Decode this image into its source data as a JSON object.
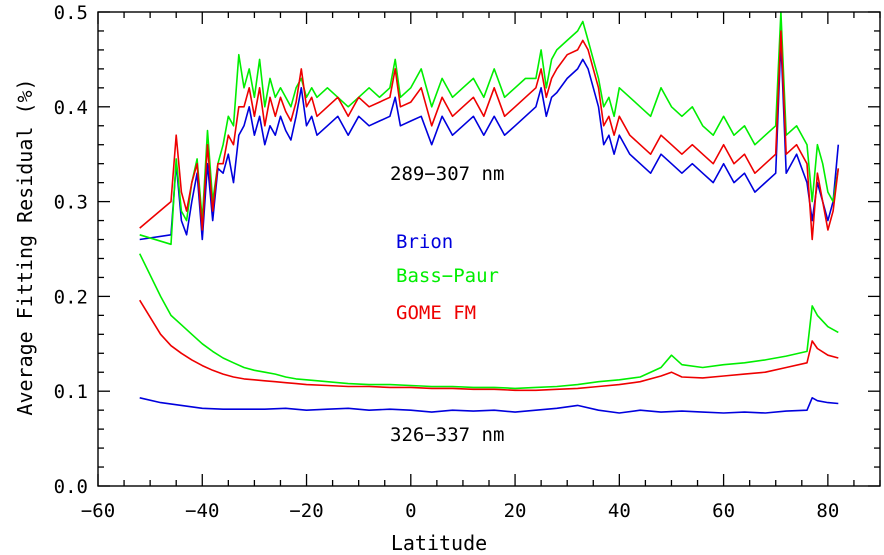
{
  "chart_data": {
    "type": "line",
    "xlabel": "Latitude",
    "ylabel": "Average Fitting Residual (%)",
    "xlim": [
      -60,
      90
    ],
    "ylim": [
      0.0,
      0.5
    ],
    "x_ticks": [
      -60,
      -40,
      -20,
      0,
      20,
      40,
      60,
      80
    ],
    "x_tick_labels": [
      "−60",
      "−40",
      "−20",
      "0",
      "20",
      "40",
      "60",
      "80"
    ],
    "y_ticks": [
      0.0,
      0.1,
      0.2,
      0.3,
      0.4,
      0.5
    ],
    "y_tick_labels": [
      "0.0",
      "0.1",
      "0.2",
      "0.3",
      "0.4",
      "0.5"
    ],
    "grid": false,
    "legend_placement": "center-left",
    "annotations": [
      {
        "text": "289−307 nm",
        "x": -4,
        "y": 0.325
      },
      {
        "text": "326−337 nm",
        "x": -4,
        "y": 0.055
      }
    ],
    "legend": [
      {
        "name": "Brion",
        "color": "#0000dd"
      },
      {
        "name": "Bass−Paur",
        "color": "#00ee00"
      },
      {
        "name": "GOME FM",
        "color": "#ee0000"
      }
    ],
    "series": [
      {
        "name": "Brion",
        "band": "289−307 nm",
        "color": "#0000dd",
        "x": [
          -52,
          -46,
          -45,
          -44,
          -43,
          -42,
          -41,
          -40,
          -39,
          -38,
          -37,
          -36,
          -35,
          -34,
          -33,
          -32,
          -31,
          -30,
          -29,
          -28,
          -27,
          -26,
          -25,
          -24,
          -23,
          -22,
          -21,
          -20,
          -19,
          -18,
          -16,
          -14,
          -12,
          -10,
          -8,
          -6,
          -4,
          -3,
          -2,
          0,
          2,
          4,
          6,
          8,
          10,
          12,
          14,
          16,
          18,
          20,
          22,
          24,
          25,
          26,
          27,
          28,
          30,
          32,
          33,
          34,
          35,
          36,
          37,
          38,
          39,
          40,
          42,
          44,
          46,
          48,
          50,
          52,
          54,
          56,
          58,
          60,
          62,
          64,
          66,
          68,
          70,
          71,
          72,
          74,
          76,
          77,
          78,
          79,
          80,
          81,
          82
        ],
        "y": [
          0.26,
          0.265,
          0.34,
          0.28,
          0.265,
          0.3,
          0.33,
          0.26,
          0.34,
          0.28,
          0.335,
          0.33,
          0.35,
          0.32,
          0.37,
          0.38,
          0.4,
          0.37,
          0.39,
          0.36,
          0.38,
          0.37,
          0.39,
          0.375,
          0.365,
          0.39,
          0.42,
          0.38,
          0.39,
          0.37,
          0.38,
          0.39,
          0.37,
          0.39,
          0.38,
          0.385,
          0.39,
          0.41,
          0.38,
          0.385,
          0.39,
          0.36,
          0.39,
          0.37,
          0.38,
          0.39,
          0.37,
          0.39,
          0.37,
          0.38,
          0.39,
          0.4,
          0.42,
          0.39,
          0.41,
          0.415,
          0.43,
          0.44,
          0.45,
          0.44,
          0.42,
          0.4,
          0.36,
          0.37,
          0.35,
          0.37,
          0.35,
          0.34,
          0.33,
          0.35,
          0.34,
          0.33,
          0.34,
          0.33,
          0.32,
          0.34,
          0.32,
          0.33,
          0.31,
          0.32,
          0.33,
          0.47,
          0.33,
          0.35,
          0.32,
          0.28,
          0.32,
          0.3,
          0.28,
          0.3,
          0.36
        ]
      },
      {
        "name": "Bass−Paur",
        "band": "289−307 nm",
        "color": "#00ee00",
        "x": [
          -52,
          -46,
          -45,
          -44,
          -43,
          -42,
          -41,
          -40,
          -39,
          -38,
          -37,
          -36,
          -35,
          -34,
          -33,
          -32,
          -31,
          -30,
          -29,
          -28,
          -27,
          -26,
          -25,
          -24,
          -23,
          -22,
          -21,
          -20,
          -19,
          -18,
          -16,
          -14,
          -12,
          -10,
          -8,
          -6,
          -4,
          -3,
          -2,
          0,
          2,
          4,
          6,
          8,
          10,
          12,
          14,
          16,
          18,
          20,
          22,
          24,
          25,
          26,
          27,
          28,
          30,
          32,
          33,
          34,
          35,
          36,
          37,
          38,
          39,
          40,
          42,
          44,
          46,
          48,
          50,
          52,
          54,
          56,
          58,
          60,
          62,
          64,
          66,
          68,
          70,
          71,
          72,
          74,
          76,
          77,
          78,
          79,
          80,
          81,
          82
        ],
        "y": [
          0.265,
          0.255,
          0.345,
          0.29,
          0.28,
          0.32,
          0.345,
          0.28,
          0.375,
          0.3,
          0.34,
          0.36,
          0.39,
          0.38,
          0.455,
          0.42,
          0.44,
          0.41,
          0.45,
          0.4,
          0.43,
          0.41,
          0.42,
          0.41,
          0.4,
          0.42,
          0.43,
          0.41,
          0.42,
          0.41,
          0.42,
          0.41,
          0.4,
          0.41,
          0.42,
          0.41,
          0.42,
          0.45,
          0.41,
          0.42,
          0.44,
          0.4,
          0.43,
          0.41,
          0.42,
          0.43,
          0.41,
          0.44,
          0.41,
          0.42,
          0.43,
          0.43,
          0.46,
          0.42,
          0.45,
          0.46,
          0.47,
          0.48,
          0.49,
          0.47,
          0.45,
          0.43,
          0.4,
          0.41,
          0.39,
          0.42,
          0.41,
          0.4,
          0.39,
          0.42,
          0.4,
          0.39,
          0.4,
          0.38,
          0.37,
          0.39,
          0.37,
          0.38,
          0.36,
          0.37,
          0.38,
          0.5,
          0.37,
          0.38,
          0.36,
          0.3,
          0.36,
          0.34,
          0.31,
          0.3,
          0.335
        ]
      },
      {
        "name": "GOME FM",
        "band": "289−307 nm",
        "color": "#ee0000",
        "x": [
          -52,
          -46,
          -45,
          -44,
          -43,
          -42,
          -41,
          -40,
          -39,
          -38,
          -37,
          -36,
          -35,
          -34,
          -33,
          -32,
          -31,
          -30,
          -29,
          -28,
          -27,
          -26,
          -25,
          -24,
          -23,
          -22,
          -21,
          -20,
          -19,
          -18,
          -16,
          -14,
          -12,
          -10,
          -8,
          -6,
          -4,
          -3,
          -2,
          0,
          2,
          4,
          6,
          8,
          10,
          12,
          14,
          16,
          18,
          20,
          22,
          24,
          25,
          26,
          27,
          28,
          30,
          32,
          33,
          34,
          35,
          36,
          37,
          38,
          39,
          40,
          42,
          44,
          46,
          48,
          50,
          52,
          54,
          56,
          58,
          60,
          62,
          64,
          66,
          68,
          70,
          71,
          72,
          74,
          76,
          77,
          78,
          79,
          80,
          81,
          82
        ],
        "y": [
          0.272,
          0.3,
          0.37,
          0.31,
          0.29,
          0.32,
          0.34,
          0.27,
          0.36,
          0.29,
          0.34,
          0.34,
          0.37,
          0.36,
          0.4,
          0.4,
          0.42,
          0.39,
          0.42,
          0.38,
          0.41,
          0.39,
          0.41,
          0.395,
          0.385,
          0.405,
          0.44,
          0.4,
          0.41,
          0.39,
          0.4,
          0.41,
          0.39,
          0.41,
          0.4,
          0.405,
          0.41,
          0.44,
          0.4,
          0.405,
          0.42,
          0.38,
          0.41,
          0.39,
          0.4,
          0.41,
          0.39,
          0.42,
          0.39,
          0.4,
          0.41,
          0.42,
          0.44,
          0.41,
          0.43,
          0.44,
          0.455,
          0.46,
          0.47,
          0.46,
          0.44,
          0.42,
          0.38,
          0.39,
          0.37,
          0.39,
          0.37,
          0.36,
          0.35,
          0.37,
          0.36,
          0.35,
          0.36,
          0.35,
          0.34,
          0.36,
          0.34,
          0.35,
          0.33,
          0.34,
          0.35,
          0.48,
          0.35,
          0.36,
          0.34,
          0.26,
          0.33,
          0.3,
          0.27,
          0.29,
          0.335
        ]
      },
      {
        "name": "Brion",
        "band": "326−337 nm",
        "color": "#0000dd",
        "x": [
          -52,
          -48,
          -44,
          -40,
          -36,
          -32,
          -28,
          -24,
          -20,
          -16,
          -12,
          -8,
          -4,
          0,
          4,
          8,
          12,
          16,
          20,
          24,
          28,
          32,
          36,
          40,
          44,
          48,
          52,
          56,
          60,
          64,
          68,
          72,
          76,
          77,
          78,
          80,
          82
        ],
        "y": [
          0.093,
          0.088,
          0.085,
          0.082,
          0.081,
          0.081,
          0.081,
          0.082,
          0.08,
          0.081,
          0.082,
          0.08,
          0.081,
          0.08,
          0.078,
          0.08,
          0.079,
          0.08,
          0.078,
          0.08,
          0.082,
          0.085,
          0.08,
          0.077,
          0.08,
          0.078,
          0.079,
          0.078,
          0.077,
          0.078,
          0.077,
          0.079,
          0.08,
          0.093,
          0.09,
          0.088,
          0.087
        ]
      },
      {
        "name": "Bass−Paur",
        "band": "326−337 nm",
        "color": "#00ee00",
        "x": [
          -52,
          -48,
          -46,
          -44,
          -42,
          -40,
          -38,
          -36,
          -34,
          -32,
          -30,
          -28,
          -26,
          -24,
          -22,
          -20,
          -16,
          -12,
          -8,
          -4,
          0,
          4,
          8,
          12,
          16,
          20,
          24,
          28,
          32,
          36,
          40,
          44,
          48,
          50,
          52,
          56,
          60,
          64,
          68,
          72,
          76,
          77,
          78,
          80,
          82
        ],
        "y": [
          0.245,
          0.2,
          0.18,
          0.17,
          0.16,
          0.15,
          0.142,
          0.135,
          0.13,
          0.125,
          0.122,
          0.12,
          0.118,
          0.115,
          0.113,
          0.112,
          0.11,
          0.108,
          0.107,
          0.107,
          0.106,
          0.105,
          0.105,
          0.104,
          0.104,
          0.103,
          0.104,
          0.105,
          0.107,
          0.11,
          0.112,
          0.115,
          0.125,
          0.138,
          0.128,
          0.125,
          0.128,
          0.13,
          0.133,
          0.137,
          0.142,
          0.19,
          0.18,
          0.168,
          0.162
        ]
      },
      {
        "name": "GOME FM",
        "band": "326−337 nm",
        "color": "#ee0000",
        "x": [
          -52,
          -48,
          -46,
          -44,
          -42,
          -40,
          -38,
          -36,
          -34,
          -32,
          -30,
          -28,
          -26,
          -24,
          -22,
          -20,
          -16,
          -12,
          -8,
          -4,
          0,
          4,
          8,
          12,
          16,
          20,
          24,
          28,
          32,
          36,
          40,
          44,
          48,
          50,
          52,
          56,
          60,
          64,
          68,
          72,
          76,
          77,
          78,
          80,
          82
        ],
        "y": [
          0.196,
          0.16,
          0.148,
          0.14,
          0.133,
          0.127,
          0.122,
          0.118,
          0.115,
          0.113,
          0.112,
          0.111,
          0.11,
          0.109,
          0.108,
          0.107,
          0.106,
          0.105,
          0.105,
          0.104,
          0.104,
          0.103,
          0.103,
          0.102,
          0.102,
          0.101,
          0.101,
          0.102,
          0.103,
          0.105,
          0.107,
          0.11,
          0.116,
          0.12,
          0.115,
          0.114,
          0.116,
          0.118,
          0.12,
          0.125,
          0.13,
          0.153,
          0.145,
          0.138,
          0.135
        ]
      }
    ]
  }
}
